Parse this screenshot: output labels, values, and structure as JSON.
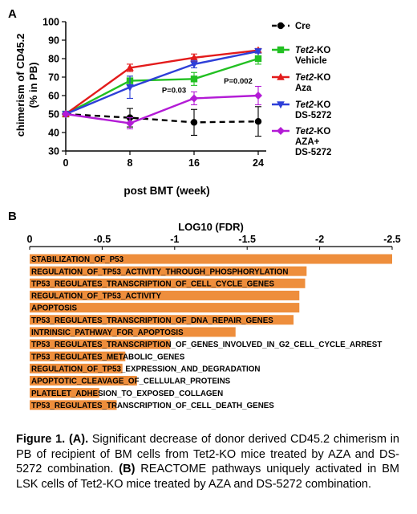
{
  "chart_data": [
    {
      "type": "line",
      "panel_label": "A",
      "ylabel_line1": "chimerism of CD45.2",
      "ylabel_line2": "(% in PB)",
      "xlabel": "post BMT (week)",
      "x": [
        0,
        8,
        16,
        24
      ],
      "x_ticks": [
        0,
        8,
        16,
        24
      ],
      "y_ticks": [
        30,
        40,
        50,
        60,
        70,
        80,
        90,
        100
      ],
      "xlim": [
        0,
        25
      ],
      "ylim": [
        30,
        100
      ],
      "series": [
        {
          "name": "Cre",
          "legend": [
            "Cre"
          ],
          "color": "#000000",
          "marker": "circle",
          "dashed": true,
          "values": [
            50,
            48,
            45.5,
            46
          ],
          "errors": [
            0,
            5,
            7,
            8
          ]
        },
        {
          "name": "Tet2-KO Vehicle",
          "legend": [
            "Tet2-KO",
            "Vehicle"
          ],
          "color": "#22c022",
          "marker": "square",
          "dashed": false,
          "values": [
            50,
            68,
            69,
            80
          ],
          "errors": [
            0,
            2.5,
            3.5,
            3
          ]
        },
        {
          "name": "Tet2-KO Aza",
          "legend": [
            "Tet2-KO",
            "Aza"
          ],
          "color": "#e31b1b",
          "marker": "triangle",
          "dashed": false,
          "values": [
            50,
            75,
            80.5,
            84.5
          ],
          "errors": [
            0,
            2,
            2,
            1
          ]
        },
        {
          "name": "Tet2-KO DS-5272",
          "legend": [
            "Tet2-KO",
            "DS-5272"
          ],
          "color": "#2e3fd8",
          "marker": "triangle-down",
          "dashed": false,
          "values": [
            50,
            64.5,
            77,
            84
          ],
          "errors": [
            0,
            6,
            2,
            1
          ]
        },
        {
          "name": "Tet2-KO AZA+ DS-5272",
          "legend": [
            "Tet2-KO",
            "AZA+",
            "DS-5272"
          ],
          "color": "#b31bd6",
          "marker": "diamond",
          "dashed": false,
          "values": [
            50,
            45,
            58.5,
            60
          ],
          "errors": [
            0,
            3,
            3.5,
            5
          ]
        }
      ],
      "annotations": [
        {
          "text": "P=0.03",
          "x": 13.5,
          "y": 61.5
        },
        {
          "text": "P=0.002",
          "x": 21.5,
          "y": 66.5
        }
      ]
    },
    {
      "type": "bar",
      "orientation": "horizontal",
      "panel_label": "B",
      "title": "LOG10 (FDR)",
      "x_tick_labels": [
        "0",
        "-0.5",
        "-1",
        "-1.5",
        "-2",
        "-2.5"
      ],
      "x_ticks": [
        0,
        -0.5,
        -1,
        -1.5,
        -2,
        -2.5
      ],
      "xlim": [
        0,
        -2.5
      ],
      "bar_color": "#ee8e3c",
      "categories": [
        "STABILIZATION_OF_P53",
        "REGULATION_OF_TP53_ACTIVITY_THROUGH_PHOSPHORYLATION",
        "TP53_REGULATES_TRANSCRIPTION_OF_CELL_CYCLE_GENES",
        "REGULATION_OF_TP53_ACTIVITY",
        "APOPTOSIS",
        "TP53_REGULATES_TRANSCRIPTION_OF_DNA_REPAIR_GENES",
        "INTRINSIC_PATHWAY_FOR_APOPTOSIS",
        "TP53_REGULATES_TRANSCRIPTION_OF_GENES_INVOLVED_IN_G2_CELL_CYCLE_ARREST",
        "TP53_REGULATES_METABOLIC_GENES",
        "REGULATION_OF_TP53_EXPRESSION_AND_DEGRADATION",
        "APOPTOTIC_CLEAVAGE_OF_CELLULAR_PROTEINS",
        "PLATELET_ADHESION_TO_EXPOSED_COLLAGEN",
        "TP53_REGULATES_TRANSCRIPTION_OF_CELL_DEATH_GENES"
      ],
      "values": [
        -2.5,
        -1.91,
        -1.9,
        -1.86,
        -1.86,
        -1.82,
        -1.42,
        -0.97,
        -0.66,
        -0.64,
        -0.74,
        -0.48,
        -0.6
      ]
    }
  ],
  "caption": {
    "figure_label": "Figure 1.",
    "panel_a_ref": "(A).",
    "text_a": " Significant decrease of donor derived CD45.2 chimerism in PB of recipient of BM cells from Tet2-KO mice treated by AZA and DS-5272 combination. ",
    "panel_b_ref": "(B)",
    "text_b": " REACTOME pathways uniquely activated in BM LSK cells of Tet2-KO mice treated by AZA and DS-5272 combination."
  }
}
